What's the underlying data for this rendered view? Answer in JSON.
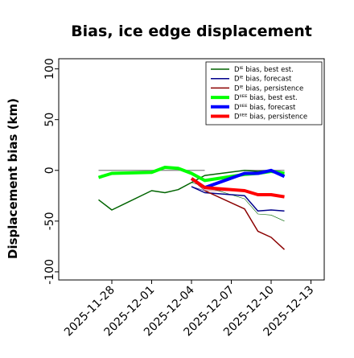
{
  "chart_data": {
    "type": "line",
    "title": "Bias, ice edge displacement",
    "ylabel": "Displacement bias (km)",
    "xlabel": "",
    "ylim": [
      -108,
      110
    ],
    "xlim": [
      "2025-11-24",
      "2025-12-14"
    ],
    "y_ticks": [
      100,
      50,
      0,
      -50,
      -100
    ],
    "x_ticks": [
      "2025-11-28",
      "2025-12-01",
      "2025-12-04",
      "2025-12-07",
      "2025-12-10",
      "2025-12-13"
    ],
    "highlight_tick": "2025-12-04",
    "highlight_color": "#228b22",
    "grid": false,
    "legend_position": "top-right",
    "zero_line": {
      "y": 0,
      "color": "#808080",
      "segments": [
        [
          "2025-11-27",
          "2025-12-05"
        ],
        [
          "2025-12-08",
          "2025-12-11"
        ]
      ]
    },
    "series": [
      {
        "name": "Dᴵᴱ bias, best est.",
        "color": "#006400",
        "width": 1.5,
        "x": [
          "2025-11-27",
          "2025-11-28",
          "2025-12-01",
          "2025-12-02",
          "2025-12-03",
          "2025-12-04",
          "2025-12-05",
          "2025-12-08",
          "2025-12-09",
          "2025-12-10",
          "2025-12-11"
        ],
        "y": [
          -29,
          -39,
          -20,
          -22,
          -19,
          -12,
          -5,
          0,
          -1,
          0,
          -3
        ]
      },
      {
        "name": "Dᴵᴱ bias, forecast",
        "color": "#00008b",
        "width": 1.5,
        "x": [
          "2025-12-04",
          "2025-12-05",
          "2025-12-08",
          "2025-12-09",
          "2025-12-10",
          "2025-12-11"
        ],
        "y": [
          -16,
          -22,
          -25,
          -40,
          -39,
          -40
        ]
      },
      {
        "name": "Dᴵᴱ bias, persistence",
        "color": "#8b0000",
        "width": 1.5,
        "x": [
          "2025-12-05",
          "2025-12-08",
          "2025-12-09",
          "2025-12-10",
          "2025-12-11"
        ],
        "y": [
          -20,
          -38,
          -60,
          -66,
          -78
        ]
      },
      {
        "name": "Dᴵᴵᴱᴱ bias, best est.",
        "color": "#00ff00",
        "width": 4,
        "x": [
          "2025-11-27",
          "2025-11-28",
          "2025-12-01",
          "2025-12-02",
          "2025-12-03",
          "2025-12-04",
          "2025-12-05",
          "2025-12-08",
          "2025-12-09",
          "2025-12-10",
          "2025-12-11"
        ],
        "y": [
          -7,
          -3,
          -2,
          3,
          2,
          -3,
          -10,
          -4,
          -3,
          -1,
          -3
        ]
      },
      {
        "name": "Dᴵᴵᴱᴱ bias, forecast",
        "color": "#0000ff",
        "width": 4,
        "x": [
          "2025-12-04",
          "2025-12-05",
          "2025-12-08",
          "2025-12-09",
          "2025-12-10",
          "2025-12-11"
        ],
        "y": [
          -8,
          -17,
          -3,
          -3,
          0,
          -6
        ]
      },
      {
        "name": "Dᴵᴵᴱᴱ bias, persistence",
        "color": "#ff0000",
        "width": 4,
        "x": [
          "2025-12-04",
          "2025-12-05",
          "2025-12-08",
          "2025-12-09",
          "2025-12-10",
          "2025-12-11"
        ],
        "y": [
          -8,
          -17,
          -20,
          -24,
          -24,
          -26
        ]
      }
    ],
    "connector_lines": [
      {
        "color": "#006400",
        "width": 0.6,
        "x": [
          "2025-12-04",
          "2025-12-08",
          "2025-12-09",
          "2025-12-10",
          "2025-12-11"
        ],
        "y": [
          -12,
          -28,
          -43,
          -44,
          -50
        ]
      },
      {
        "color": "#8b0000",
        "width": 0.6,
        "x": [
          "2025-12-04",
          "2025-12-05",
          "2025-12-08"
        ],
        "y": [
          -9,
          -20,
          -20
        ]
      },
      {
        "color": "#00008b",
        "width": 0.6,
        "x": [
          "2025-12-04",
          "2025-12-05"
        ],
        "y": [
          -16,
          -20
        ]
      }
    ]
  }
}
